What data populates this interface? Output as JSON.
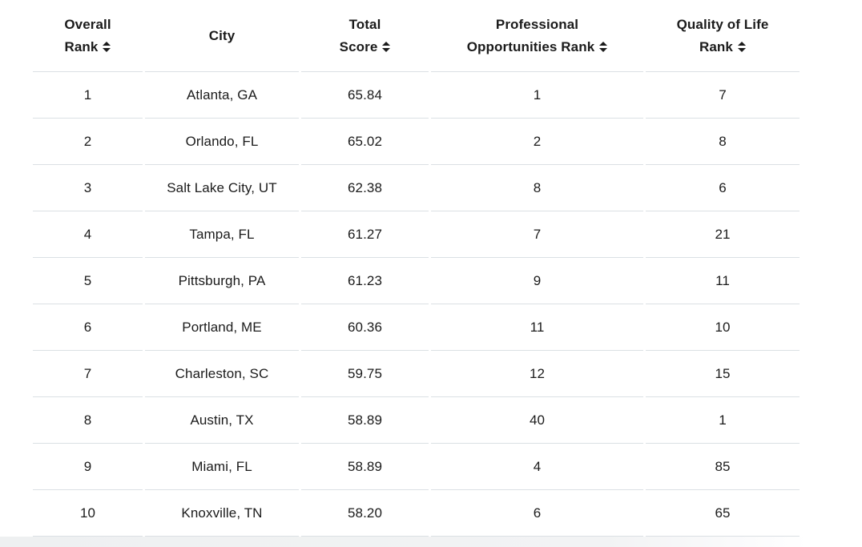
{
  "table": {
    "columns": [
      {
        "line1": "Overall",
        "line2": "Rank",
        "sortable": true
      },
      {
        "line1": "City",
        "line2": "",
        "sortable": false
      },
      {
        "line1": "Total",
        "line2": "Score",
        "sortable": true
      },
      {
        "line1": "Professional",
        "line2": "Opportunities Rank",
        "sortable": true
      },
      {
        "line1": "Quality of Life",
        "line2": "Rank",
        "sortable": true
      }
    ],
    "rows": [
      [
        "1",
        "Atlanta, GA",
        "65.84",
        "1",
        "7"
      ],
      [
        "2",
        "Orlando, FL",
        "65.02",
        "2",
        "8"
      ],
      [
        "3",
        "Salt Lake City, UT",
        "62.38",
        "8",
        "6"
      ],
      [
        "4",
        "Tampa, FL",
        "61.27",
        "7",
        "21"
      ],
      [
        "5",
        "Pittsburgh, PA",
        "61.23",
        "9",
        "11"
      ],
      [
        "6",
        "Portland, ME",
        "60.36",
        "11",
        "10"
      ],
      [
        "7",
        "Charleston, SC",
        "59.75",
        "12",
        "15"
      ],
      [
        "8",
        "Austin, TX",
        "58.89",
        "40",
        "1"
      ],
      [
        "9",
        "Miami, FL",
        "58.89",
        "4",
        "85"
      ],
      [
        "10",
        "Knoxville, TN",
        "58.20",
        "6",
        "65"
      ]
    ],
    "colors": {
      "text": "#1b1b1b",
      "row_border": "#dbe0e4",
      "next_row_peek_bg": "#eef0f1"
    }
  }
}
